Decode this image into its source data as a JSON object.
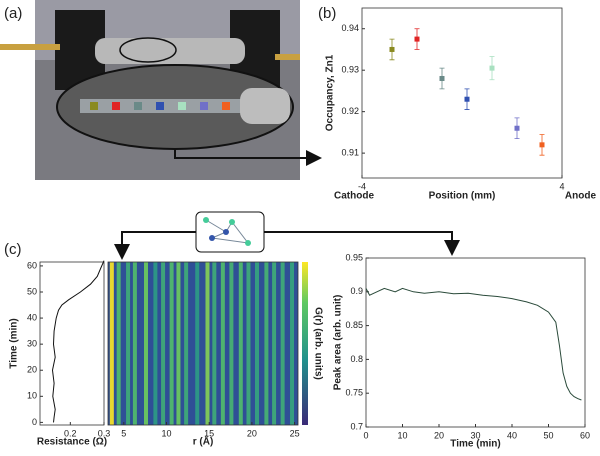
{
  "panel_labels": [
    "(a)",
    "(b)",
    "(c)"
  ],
  "chart_data": [
    {
      "type": "scatter",
      "xlabel": "Position (mm)",
      "ylabel": "Occupancy, Zn1",
      "annotations": [
        "Cathode",
        "Anode"
      ],
      "x": [
        -2.8,
        -1.8,
        -0.8,
        0.2,
        1.2,
        2.2,
        3.2
      ],
      "values": [
        0.935,
        0.9375,
        0.928,
        0.923,
        0.9305,
        0.916,
        0.912
      ],
      "errors": [
        0.0025,
        0.0025,
        0.0025,
        0.0025,
        0.0028,
        0.0025,
        0.0025
      ],
      "colors": [
        "#8a8a20",
        "#e02424",
        "#6a8a88",
        "#3050b0",
        "#a8e0c0",
        "#7070c8",
        "#f06020"
      ],
      "xlim": [
        -4,
        4
      ],
      "xticks": [
        -4,
        4
      ],
      "ylim": [
        0.904,
        0.945
      ],
      "yticks": [
        0.91,
        0.92,
        0.93,
        0.94
      ]
    },
    {
      "type": "line",
      "xlabel": "Resistance (Ω)",
      "ylabel": "Time (min)",
      "color": "#111",
      "x": [
        0.15,
        0.152,
        0.155,
        0.148,
        0.152,
        0.147,
        0.155,
        0.15,
        0.152,
        0.158,
        0.165,
        0.175,
        0.195,
        0.23,
        0.26,
        0.28,
        0.29,
        0.3
      ],
      "values": [
        0,
        2,
        5,
        10,
        15,
        20,
        25,
        30,
        35,
        40,
        43,
        45,
        47,
        50,
        53,
        56,
        59,
        62
      ],
      "xlim": [
        0.11,
        0.3
      ],
      "xticks": [
        0.2,
        0.3
      ],
      "ylim": [
        -1,
        61.5
      ],
      "yticks": [
        0,
        10,
        20,
        30,
        40,
        50,
        60
      ]
    },
    {
      "type": "heatmap",
      "xlabel": "r (Å)",
      "colorbar_label": "G(r) (arb. units)",
      "x": [
        3.6,
        4.4,
        5.5,
        6.3,
        7.6,
        8.7,
        9.6,
        10.6,
        11.4,
        12.3,
        13.6,
        14.8,
        15.6,
        16.6,
        17.6,
        18.7,
        19.6,
        20.6,
        21.7,
        22.6,
        23.6,
        24.7
      ],
      "values": [
        1,
        0.6,
        0.5,
        0.6,
        0.7,
        0.4,
        0.5,
        0.6,
        0.7,
        0.5,
        0.4,
        0.75,
        0.5,
        0.6,
        0.55,
        0.6,
        0.5,
        0.45,
        0.55,
        0.5,
        0.5,
        0.45
      ],
      "xlim": [
        3.15,
        25.4
      ],
      "xticks": [
        5,
        10,
        15,
        20,
        25
      ]
    },
    {
      "type": "line",
      "xlabel": "Time (min)",
      "ylabel": "Peak area (arb. unit)",
      "color": "#2a4a3a",
      "x": [
        0,
        1,
        3,
        5,
        8,
        10,
        13,
        16,
        20,
        24,
        28,
        32,
        36,
        40,
        44,
        47,
        50,
        52,
        53,
        54,
        55,
        56,
        57,
        58,
        59
      ],
      "values": [
        0.905,
        0.895,
        0.9,
        0.905,
        0.9,
        0.905,
        0.9,
        0.898,
        0.9,
        0.897,
        0.898,
        0.895,
        0.893,
        0.89,
        0.885,
        0.88,
        0.87,
        0.855,
        0.82,
        0.78,
        0.76,
        0.75,
        0.745,
        0.742,
        0.74
      ],
      "xlim": [
        0,
        60
      ],
      "xticks": [
        0,
        10,
        20,
        30,
        40,
        50,
        60
      ],
      "ylim": [
        0.7,
        0.95
      ],
      "yticks": [
        0.7,
        0.75,
        0.8,
        0.85,
        0.9,
        0.95
      ]
    }
  ]
}
